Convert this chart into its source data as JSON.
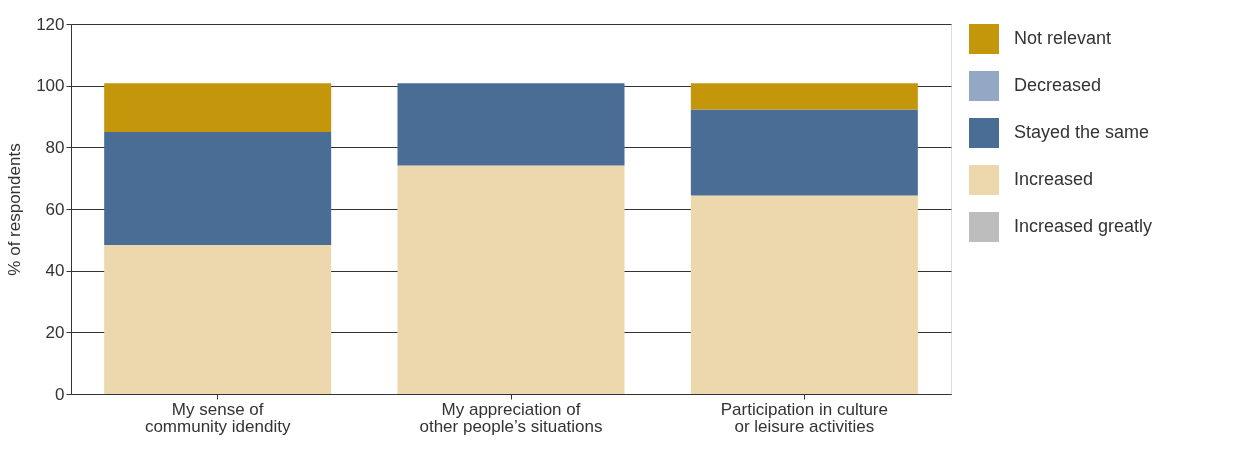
{
  "chart_data": {
    "type": "bar",
    "stacked": true,
    "ylabel": "% of respondents",
    "categories": [
      "My sense of\ncommunity idendity",
      "My appreciation of\nother people’s situations",
      "Participation in culture\nor leisure activities"
    ],
    "series": [
      {
        "name": "Increased greatly",
        "color": "#bdbdbd",
        "values": [
          0,
          0,
          0
        ]
      },
      {
        "name": "Increased",
        "color": "#ecd8ac",
        "values": [
          48.3,
          74.1,
          64.4
        ]
      },
      {
        "name": "Stayed the same",
        "color": "#4a6d96",
        "values": [
          36.7,
          26.7,
          27.9
        ]
      },
      {
        "name": "Decreased",
        "color": "#94a8c6",
        "values": [
          0,
          0,
          0
        ]
      },
      {
        "name": "Not relevant",
        "color": "#c4960c",
        "values": [
          15.8,
          0,
          8.5
        ]
      }
    ],
    "ylim": [
      0,
      120
    ],
    "yticks": [
      0,
      20,
      40,
      60,
      80,
      100,
      120
    ],
    "grid": "y",
    "legend": "right"
  }
}
